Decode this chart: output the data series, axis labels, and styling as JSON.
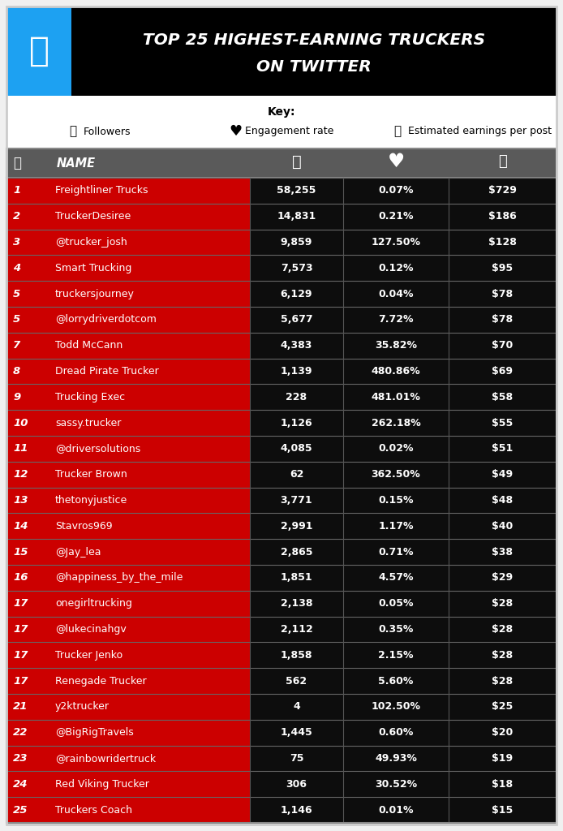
{
  "title_line1": "TOP 25 HIGHEST-EARNING TRUCKERS",
  "title_line2": "ON TWITTER",
  "twitter_blue": "#1DA1F2",
  "header_bg": "#000000",
  "table_header_bg": "#5a5a5a",
  "row_red": "#cc0000",
  "row_black": "#0d0d0d",
  "separator_color": "#444444",
  "white": "#ffffff",
  "bg_color": "#f0f0f0",
  "rows": [
    {
      "rank": "1",
      "name": "Freightliner Trucks",
      "followers": "58,255",
      "engagement": "0.07%",
      "earnings": "$729"
    },
    {
      "rank": "2",
      "name": "TruckerDesiree",
      "followers": "14,831",
      "engagement": "0.21%",
      "earnings": "$186"
    },
    {
      "rank": "3",
      "name": "@trucker_josh",
      "followers": "9,859",
      "engagement": "127.50%",
      "earnings": "$128"
    },
    {
      "rank": "4",
      "name": "Smart Trucking",
      "followers": "7,573",
      "engagement": "0.12%",
      "earnings": "$95"
    },
    {
      "rank": "5",
      "name": "truckersjourney",
      "followers": "6,129",
      "engagement": "0.04%",
      "earnings": "$78"
    },
    {
      "rank": "5",
      "name": "@lorrydriverdotcom",
      "followers": "5,677",
      "engagement": "7.72%",
      "earnings": "$78"
    },
    {
      "rank": "7",
      "name": "Todd McCann",
      "followers": "4,383",
      "engagement": "35.82%",
      "earnings": "$70"
    },
    {
      "rank": "8",
      "name": "Dread Pirate Trucker",
      "followers": "1,139",
      "engagement": "480.86%",
      "earnings": "$69"
    },
    {
      "rank": "9",
      "name": "Trucking Exec",
      "followers": "228",
      "engagement": "481.01%",
      "earnings": "$58"
    },
    {
      "rank": "10",
      "name": "sassy.trucker",
      "followers": "1,126",
      "engagement": "262.18%",
      "earnings": "$55"
    },
    {
      "rank": "11",
      "name": "@driversolutions",
      "followers": "4,085",
      "engagement": "0.02%",
      "earnings": "$51"
    },
    {
      "rank": "12",
      "name": "Trucker Brown",
      "followers": "62",
      "engagement": "362.50%",
      "earnings": "$49"
    },
    {
      "rank": "13",
      "name": "thetonyjustice",
      "followers": "3,771",
      "engagement": "0.15%",
      "earnings": "$48"
    },
    {
      "rank": "14",
      "name": "Stavros969",
      "followers": "2,991",
      "engagement": "1.17%",
      "earnings": "$40"
    },
    {
      "rank": "15",
      "name": "@Jay_lea",
      "followers": "2,865",
      "engagement": "0.71%",
      "earnings": "$38"
    },
    {
      "rank": "16",
      "name": "@happiness_by_the_mile",
      "followers": "1,851",
      "engagement": "4.57%",
      "earnings": "$29"
    },
    {
      "rank": "17",
      "name": "onegirltrucking",
      "followers": "2,138",
      "engagement": "0.05%",
      "earnings": "$28"
    },
    {
      "rank": "17",
      "name": "@lukecinahgv",
      "followers": "2,112",
      "engagement": "0.35%",
      "earnings": "$28"
    },
    {
      "rank": "17",
      "name": "Trucker Jenko",
      "followers": "1,858",
      "engagement": "2.15%",
      "earnings": "$28"
    },
    {
      "rank": "17",
      "name": "Renegade Trucker",
      "followers": "562",
      "engagement": "5.60%",
      "earnings": "$28"
    },
    {
      "rank": "21",
      "name": "y2ktrucker",
      "followers": "4",
      "engagement": "102.50%",
      "earnings": "$25"
    },
    {
      "rank": "22",
      "name": "@BigRigTravels",
      "followers": "1,445",
      "engagement": "0.60%",
      "earnings": "$20"
    },
    {
      "rank": "23",
      "name": "@rainbowridertruck",
      "followers": "75",
      "engagement": "49.93%",
      "earnings": "$19"
    },
    {
      "rank": "24",
      "name": "Red Viking Trucker",
      "followers": "306",
      "engagement": "30.52%",
      "earnings": "$18"
    },
    {
      "rank": "25",
      "name": "Truckers Coach",
      "followers": "1,146",
      "engagement": "0.01%",
      "earnings": "$15"
    }
  ]
}
